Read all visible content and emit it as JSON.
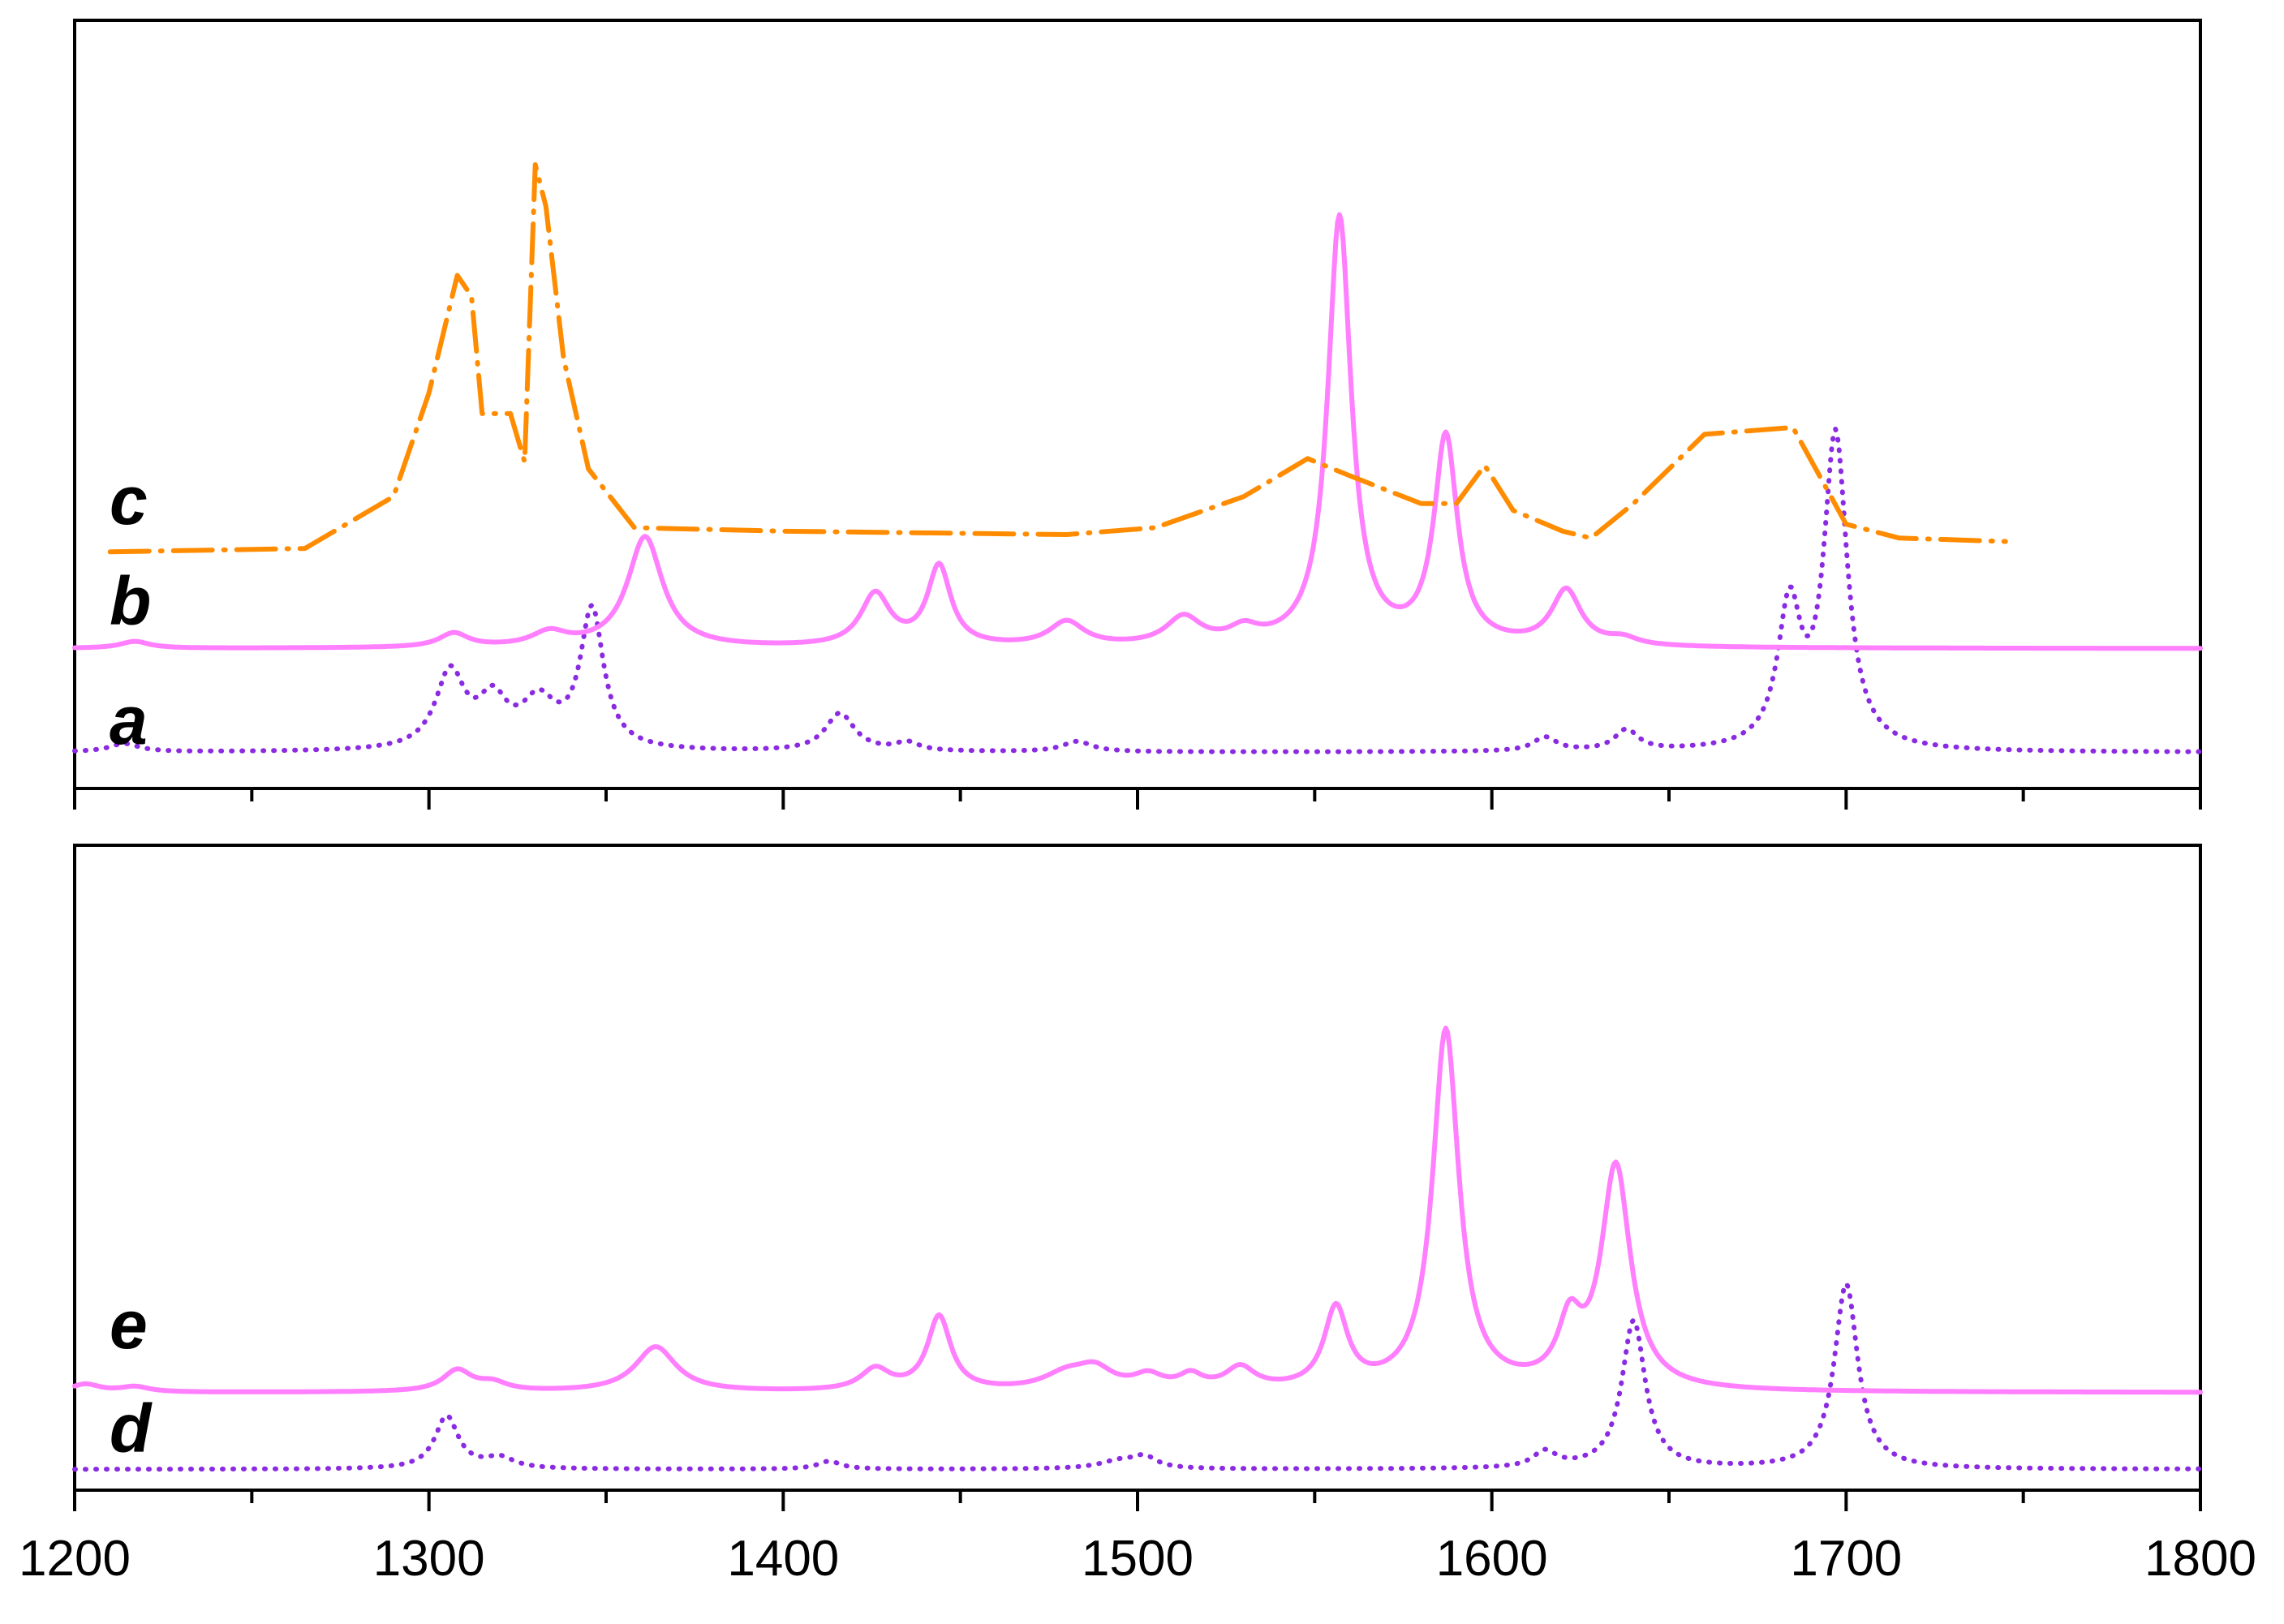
{
  "chart_data": {
    "type": "line",
    "title": "",
    "xlabel": "",
    "ylabel": "",
    "xlim": [
      1200,
      1800
    ],
    "x_ticks": [
      1200,
      1300,
      1400,
      1500,
      1600,
      1700,
      1800
    ],
    "x_minor_ticks": [
      1250,
      1350,
      1450,
      1550,
      1650,
      1750
    ],
    "grid": false,
    "legend": "none",
    "panels": [
      {
        "ylim": [
          0,
          1
        ],
        "series": [
          {
            "label": "a",
            "color": "#8a2be2",
            "style": "dotted",
            "model": {
              "baseline": 0.03,
              "xrange": [
                1200,
                1800
              ],
              "peaks": [
                [
                  1214,
                  0.012,
                  5
                ],
                [
                  1306,
                  0.11,
                  5
                ],
                [
                  1318,
                  0.065,
                  5
                ],
                [
                  1331,
                  0.065,
                  6
                ],
                [
                  1346,
                  0.2,
                  4
                ],
                [
                  1416,
                  0.055,
                  5
                ],
                [
                  1435,
                  0.012,
                  4
                ],
                [
                  1483,
                  0.015,
                  5
                ],
                [
                  1615,
                  0.02,
                  4
                ],
                [
                  1638,
                  0.03,
                  4
                ],
                [
                  1684,
                  0.2,
                  4
                ],
                [
                  1697,
                  0.45,
                  4
                ]
              ]
            }
          },
          {
            "label": "b",
            "color": "#ff7fff",
            "style": "solid",
            "model": {
              "baseline": 0.18,
              "xrange": [
                1200,
                1800
              ],
              "peaks": [
                [
                  1217,
                  0.01,
                  5
                ],
                [
                  1307,
                  0.02,
                  5
                ],
                [
                  1334,
                  0.02,
                  6
                ],
                [
                  1361,
                  0.16,
                  6
                ],
                [
                  1426,
                  0.075,
                  5
                ],
                [
                  1444,
                  0.115,
                  4
                ],
                [
                  1480,
                  0.035,
                  6
                ],
                [
                  1513,
                  0.04,
                  6
                ],
                [
                  1530,
                  0.02,
                  5
                ],
                [
                  1557,
                  0.62,
                  4
                ],
                [
                  1587,
                  0.3,
                  4
                ],
                [
                  1621,
                  0.08,
                  5
                ],
                [
                  1637,
                  0.01,
                  5
                ]
              ]
            }
          },
          {
            "label": "c",
            "color": "#ff8c00",
            "style": "dashdot",
            "points": [
              [
                1210,
                0.32
              ],
              [
                1265,
                0.325
              ],
              [
                1290,
                0.4
              ],
              [
                1300,
                0.55
              ],
              [
                1308,
                0.72
              ],
              [
                1312,
                0.69
              ],
              [
                1315,
                0.52
              ],
              [
                1323,
                0.52
              ],
              [
                1327,
                0.45
              ],
              [
                1330,
                0.88
              ],
              [
                1333,
                0.82
              ],
              [
                1338,
                0.6
              ],
              [
                1345,
                0.44
              ],
              [
                1358,
                0.355
              ],
              [
                1400,
                0.35
              ],
              [
                1480,
                0.345
              ],
              [
                1505,
                0.355
              ],
              [
                1530,
                0.4
              ],
              [
                1548,
                0.455
              ],
              [
                1560,
                0.43
              ],
              [
                1580,
                0.39
              ],
              [
                1590,
                0.39
              ],
              [
                1598,
                0.445
              ],
              [
                1606,
                0.38
              ],
              [
                1620,
                0.35
              ],
              [
                1628,
                0.34
              ],
              [
                1640,
                0.39
              ],
              [
                1660,
                0.49
              ],
              [
                1685,
                0.5
              ],
              [
                1700,
                0.36
              ],
              [
                1715,
                0.34
              ],
              [
                1745,
                0.335
              ]
            ]
          }
        ]
      },
      {
        "ylim": [
          0,
          1
        ],
        "series": [
          {
            "label": "d",
            "color": "#8a2be2",
            "style": "dotted",
            "model": {
              "baseline": 0.015,
              "xrange": [
                1200,
                1800
              ],
              "peaks": [
                [
                  1305,
                  0.1,
                  4
                ],
                [
                  1320,
                  0.02,
                  5
                ],
                [
                  1413,
                  0.015,
                  4
                ],
                [
                  1495,
                  0.015,
                  7
                ],
                [
                  1502,
                  0.02,
                  4
                ],
                [
                  1615,
                  0.03,
                  4
                ],
                [
                  1640,
                  0.28,
                  4
                ],
                [
                  1700,
                  0.35,
                  4
                ]
              ]
            }
          },
          {
            "label": "e",
            "color": "#ff7fff",
            "style": "solid",
            "model": {
              "baseline": 0.16,
              "xrange": [
                1200,
                1800
              ],
              "peaks": [
                [
                  1203,
                  0.015,
                  5
                ],
                [
                  1217,
                  0.01,
                  5
                ],
                [
                  1308,
                  0.04,
                  5
                ],
                [
                  1318,
                  0.015,
                  5
                ],
                [
                  1364,
                  0.085,
                  7
                ],
                [
                  1426,
                  0.04,
                  5
                ],
                [
                  1444,
                  0.14,
                  4
                ],
                [
                  1480,
                  0.03,
                  8
                ],
                [
                  1488,
                  0.035,
                  6
                ],
                [
                  1503,
                  0.025,
                  5
                ],
                [
                  1515,
                  0.025,
                  4
                ],
                [
                  1529,
                  0.04,
                  5
                ],
                [
                  1556,
                  0.15,
                  4
                ],
                [
                  1587,
                  0.68,
                  4.5
                ],
                [
                  1622,
                  0.11,
                  4
                ],
                [
                  1635,
                  0.42,
                  5
                ]
              ]
            }
          }
        ]
      }
    ]
  }
}
